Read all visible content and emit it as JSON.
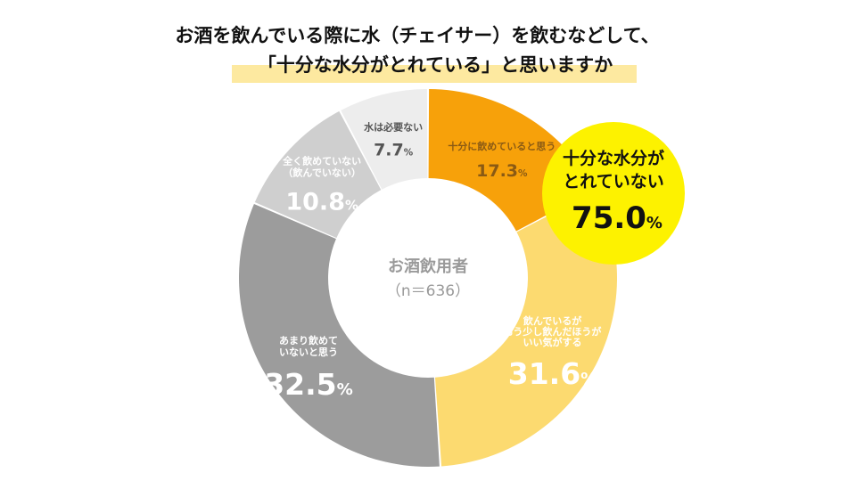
{
  "title_lines": [
    "お酒を飲んでいる際に水（チェイサー）を飲むなどして、",
    "「十分な水分がとれている」と思いますか"
  ],
  "center": {
    "label": "お酒飲用者",
    "n": "（n＝636）"
  },
  "callout": {
    "line1": "十分な水分が",
    "line2": "とれていない",
    "value": "75.0",
    "unit": "%"
  },
  "chart_data": {
    "type": "donut",
    "unit": "%",
    "categories": [
      "十分に飲めていると思う",
      "飲んでいるがもう少し飲んだほうがいい気がする",
      "あまり飲めていないと思う",
      "全く飲めていない（飲んでいない）",
      "水は必要ない"
    ],
    "values": [
      17.3,
      31.6,
      32.5,
      10.8,
      7.7
    ],
    "slices": [
      {
        "label_lines": [
          "十分に飲めていると思う"
        ],
        "value": 17.3,
        "value_text": "17.3",
        "color": "#f7a10a",
        "label_color": "#8a5a14",
        "value_color": "#8a5a14"
      },
      {
        "label_lines": [
          "飲んでいるが",
          "もう少し飲んだほうが",
          "いい気がする"
        ],
        "value": 31.6,
        "value_text": "31.6",
        "color": "#fcda70",
        "label_color": "#ffffff",
        "value_color": "#ffffff"
      },
      {
        "label_lines": [
          "あまり飲めて",
          "いないと思う"
        ],
        "value": 32.5,
        "value_text": "32.5",
        "color": "#9c9c9c",
        "label_color": "#ffffff",
        "value_color": "#ffffff"
      },
      {
        "label_lines": [
          "全く飲めていない",
          "（飲んでいない）"
        ],
        "value": 10.8,
        "value_text": "10.8",
        "color": "#cfcfcf",
        "label_color": "#ffffff",
        "value_color": "#ffffff"
      },
      {
        "label_lines": [
          "水は必要ない"
        ],
        "value": 7.7,
        "value_text": "7.7",
        "color": "#ededed",
        "label_color": "#555555",
        "value_color": "#555555"
      }
    ],
    "colors": {
      "highlight_bar": "#fde9a0",
      "callout_fill": "#fdf200",
      "center_text": "#9a9a9a"
    }
  }
}
